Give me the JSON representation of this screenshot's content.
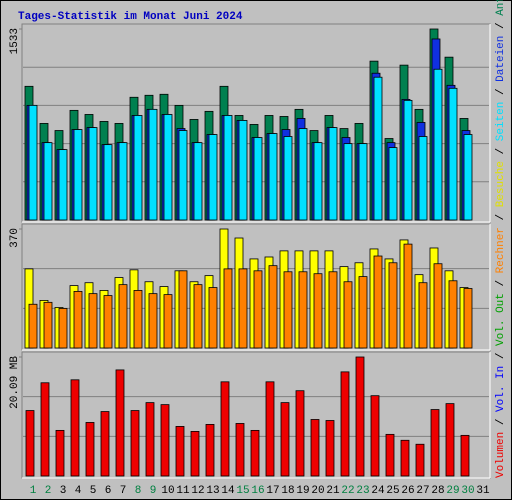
{
  "chart_data": {
    "type": "bar",
    "title": "Tages-Statistik im Monat Juni 2024",
    "title_color": "#0000c0",
    "legend_separator": " / ",
    "categories": [
      "1",
      "2",
      "3",
      "4",
      "5",
      "6",
      "7",
      "8",
      "9",
      "10",
      "11",
      "12",
      "13",
      "14",
      "15",
      "16",
      "17",
      "18",
      "19",
      "20",
      "21",
      "22",
      "23",
      "24",
      "25",
      "26",
      "27",
      "28",
      "29",
      "30",
      "31"
    ],
    "category_colors": [
      "#008040",
      "#008040",
      "#000000",
      "#000000",
      "#000000",
      "#000000",
      "#000000",
      "#008040",
      "#008040",
      "#000000",
      "#000000",
      "#000000",
      "#000000",
      "#000000",
      "#008040",
      "#008040",
      "#000000",
      "#000000",
      "#000000",
      "#000000",
      "#000000",
      "#008040",
      "#008040",
      "#000000",
      "#000000",
      "#000000",
      "#000000",
      "#000000",
      "#008040",
      "#008040",
      "#000000"
    ],
    "panels": [
      {
        "ylim": [
          0,
          1533
        ],
        "yticks": [
          1533
        ],
        "grid": true,
        "grid_divisions": 5,
        "series": [
          {
            "name": "Seiten",
            "color": "#00e0ff",
            "values": [
              920,
              621,
              565,
              726,
              742,
              605,
              621,
              839,
              888,
              847,
              718,
              621,
              686,
              839,
              799,
              662,
              694,
              670,
              734,
              621,
              742,
              613,
              613,
              1146,
              581,
              960,
              670,
              1210,
              1057,
              686,
              null
            ]
          },
          {
            "name": "Dateien",
            "color": "#1030e0",
            "values": [
              920,
              621,
              565,
              726,
              742,
              605,
              621,
              839,
              888,
              847,
              734,
              621,
              686,
              839,
              799,
              662,
              694,
              726,
              815,
              621,
              742,
              662,
              613,
              1178,
              621,
              968,
              783,
              1453,
              1081,
              718,
              null
            ]
          },
          {
            "name": "Anfragen",
            "color": "#008050",
            "values": [
              1073,
              775,
              718,
              880,
              847,
              791,
              775,
              985,
              1001,
              1009,
              920,
              807,
              872,
              1073,
              839,
              767,
              839,
              831,
              888,
              718,
              839,
              734,
              775,
              1275,
              654,
              1243,
              888,
              1533,
              1307,
              815,
              null
            ]
          }
        ]
      },
      {
        "ylim": [
          0,
          370
        ],
        "yticks": [
          370
        ],
        "grid": true,
        "grid_divisions": 3,
        "series": [
          {
            "name": "Rechner",
            "color": "#ff8000",
            "values": [
              136,
              142,
              123,
              176,
              169,
              163,
              197,
              179,
              169,
              166,
              240,
              197,
              188,
              246,
              246,
              240,
              256,
              237,
              237,
              231,
              237,
              206,
              222,
              286,
              265,
              323,
              203,
              262,
              209,
              185,
              null
            ]
          },
          {
            "name": "Besuche",
            "color": "#ffff00",
            "values": [
              246,
              148,
              126,
              194,
              203,
              179,
              219,
              243,
              206,
              191,
              240,
              206,
              225,
              370,
              342,
              277,
              283,
              302,
              302,
              302,
              302,
              253,
              265,
              308,
              277,
              336,
              228,
              311,
              240,
              188,
              null
            ]
          }
        ]
      },
      {
        "ylim": [
          0,
          20.09
        ],
        "yticks": [
          {
            "value": 20.09,
            "label": "20.09 MB"
          }
        ],
        "grid": true,
        "grid_divisions": 3,
        "series": [
          {
            "name": "Volumen",
            "color": "#ee0000",
            "values": [
              11.05,
              15.74,
              7.7,
              16.24,
              9.04,
              10.88,
              17.91,
              11.05,
              12.39,
              12.05,
              8.37,
              7.53,
              8.71,
              15.9,
              8.87,
              7.7,
              15.9,
              12.39,
              14.4,
              9.54,
              9.37,
              17.58,
              20.09,
              13.56,
              7.03,
              6.03,
              5.36,
              11.22,
              12.22,
              6.86,
              null
            ]
          },
          {
            "name": "Vol. In",
            "color": "#0000ff",
            "values": [
              null,
              null,
              null,
              null,
              null,
              null,
              null,
              null,
              null,
              null,
              null,
              null,
              null,
              null,
              null,
              null,
              null,
              null,
              null,
              null,
              null,
              null,
              null,
              null,
              null,
              null,
              null,
              null,
              null,
              null,
              null
            ]
          },
          {
            "name": "Vol. Out",
            "color": "#00a000",
            "values": [
              null,
              null,
              null,
              null,
              null,
              null,
              null,
              null,
              null,
              null,
              null,
              null,
              null,
              null,
              null,
              null,
              null,
              null,
              null,
              null,
              null,
              null,
              null,
              null,
              null,
              null,
              null,
              null,
              null,
              null,
              null
            ]
          }
        ]
      }
    ]
  }
}
